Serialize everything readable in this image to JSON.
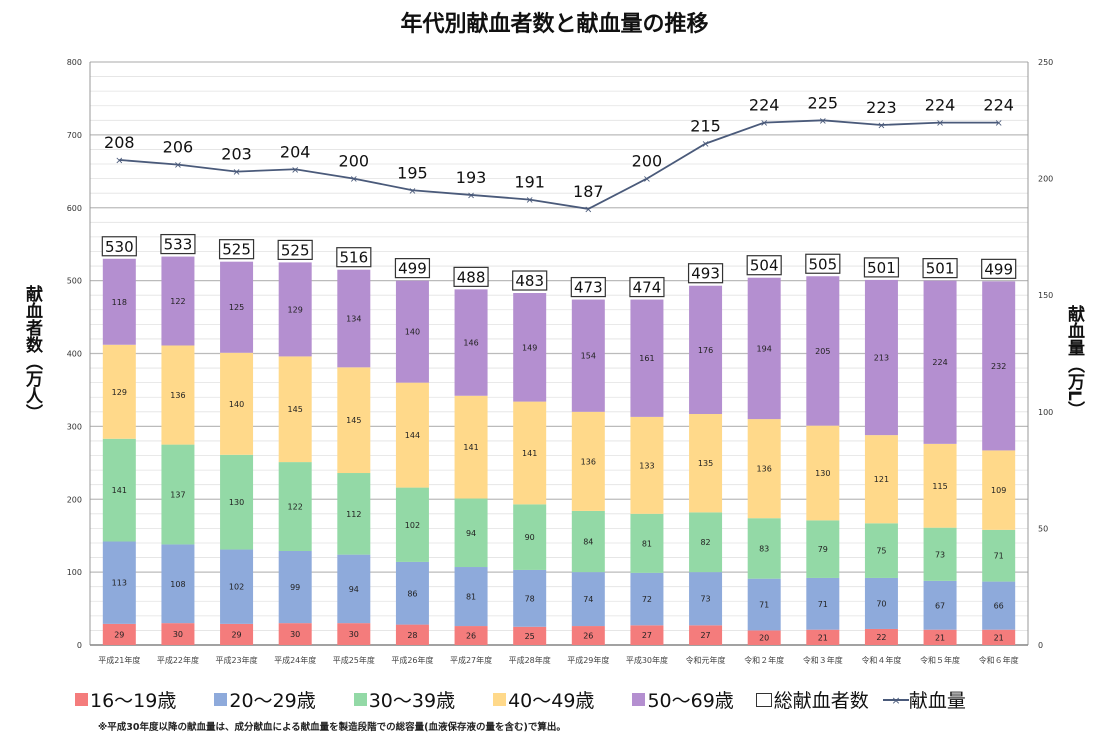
{
  "chart_data": {
    "type": "bar",
    "stacked": true,
    "title": "年代別献血者数と献血量の推移",
    "ylabel": "献血者数（万人）",
    "y2label": "献血量（万L）",
    "ylim": [
      0,
      800
    ],
    "y2lim": [
      0,
      250
    ],
    "yticks": [
      "0",
      "100",
      "200",
      "300",
      "400",
      "500",
      "600",
      "700",
      "800"
    ],
    "y2ticks": [
      "0",
      "50",
      "100",
      "150",
      "200",
      "250"
    ],
    "grid": true,
    "legend_position": "bottom",
    "categories": [
      "平成21年度",
      "平成22年度",
      "平成23年度",
      "平成24年度",
      "平成25年度",
      "平成26年度",
      "平成27年度",
      "平成28年度",
      "平成29年度",
      "平成30年度",
      "令和元年度",
      "令和２年度",
      "令和３年度",
      "令和４年度",
      "令和５年度",
      "令和６年度"
    ],
    "series": [
      {
        "name": "16～19歳",
        "color": "#f47c7c",
        "values": [
          29,
          30,
          29,
          30,
          30,
          28,
          26,
          25,
          26,
          27,
          27,
          20,
          21,
          22,
          21,
          21
        ]
      },
      {
        "name": "20～29歳",
        "color": "#8eaadb",
        "values": [
          113,
          108,
          102,
          99,
          94,
          86,
          81,
          78,
          74,
          72,
          73,
          71,
          71,
          70,
          67,
          66
        ]
      },
      {
        "name": "30～39歳",
        "color": "#93d9a6",
        "values": [
          141,
          137,
          130,
          122,
          112,
          102,
          94,
          90,
          84,
          81,
          82,
          83,
          79,
          75,
          73,
          71
        ]
      },
      {
        "name": "40～49歳",
        "color": "#ffd98a",
        "values": [
          129,
          136,
          140,
          145,
          145,
          144,
          141,
          141,
          136,
          133,
          135,
          136,
          130,
          121,
          115,
          109
        ]
      },
      {
        "name": "50～69歳",
        "color": "#b48fd0",
        "values": [
          118,
          122,
          125,
          129,
          134,
          140,
          146,
          149,
          154,
          161,
          176,
          194,
          205,
          213,
          224,
          232
        ]
      }
    ],
    "totals": {
      "name": "総献血者数",
      "values": [
        530,
        533,
        525,
        525,
        516,
        499,
        488,
        483,
        473,
        474,
        493,
        504,
        505,
        501,
        501,
        499
      ]
    },
    "line": {
      "name": "献血量",
      "axis": "right",
      "color": "#4a5a7a",
      "values": [
        208,
        206,
        203,
        204,
        200,
        195,
        193,
        191,
        187,
        200,
        215,
        224,
        225,
        223,
        224,
        224
      ]
    },
    "footnote": "※平成30年度以降の献血量は、成分献血による献血量を製造段階での総容量(血液保存液の量を含む)で算出。"
  }
}
